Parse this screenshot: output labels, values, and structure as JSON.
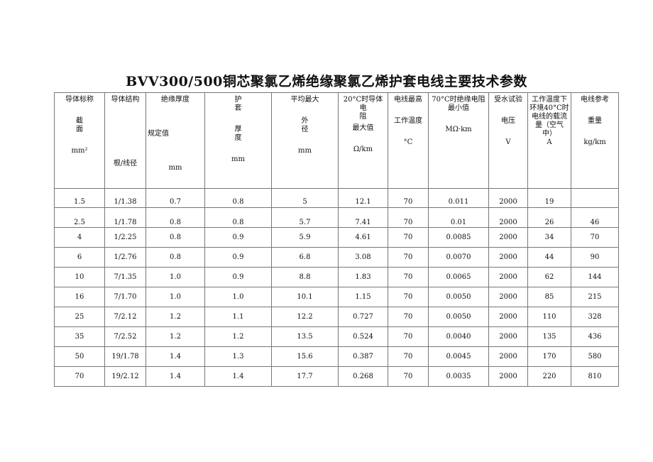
{
  "title": "BVV300/500铜芯聚氯乙烯绝缘聚氯乙烯护套电线主要技术参数",
  "headers": [
    {
      "l1": "导体标称",
      "l2a": "截",
      "l2b": "面",
      "unit": "mm²"
    },
    {
      "l1": "导体结构",
      "unit": "根/线径"
    },
    {
      "l1": "绝缘厚度",
      "l2": "规定值",
      "unit": "mm"
    },
    {
      "l1a": "护",
      "l1b": "套",
      "l2a": "厚",
      "l2b": "度",
      "unit": "mm"
    },
    {
      "l1": "平均最大",
      "l2a": "外",
      "l2b": "径",
      "unit": "mm"
    },
    {
      "l1": "20°C时导体",
      "l2a": "电",
      "l2b": "阻",
      "l3": "最大值",
      "unit": "Ω/km"
    },
    {
      "l1": "电线最高",
      "l2": "工作温度",
      "unit": "°C"
    },
    {
      "l1": "70°C时绝缘电阻",
      "l2": "最小值",
      "unit": "MΩ·km"
    },
    {
      "l1": "受水试验",
      "l2": "电压",
      "unit": "V"
    },
    {
      "l1": "工作温度下",
      "l2": "环境40°C时",
      "l3": "电线的载流",
      "l4": "量（空气",
      "l5": "中）",
      "unit": "A"
    },
    {
      "l1": "电线参考",
      "l2": "重量",
      "unit": "kg/km"
    }
  ],
  "rows": [
    [
      "1.5",
      "1/1.38",
      "0.7",
      "0.8",
      "5",
      "12.1",
      "70",
      "0.011",
      "2000",
      "19",
      ""
    ],
    [
      "2.5",
      "1/1.78",
      "0.8",
      "0.8",
      "5.7",
      "7.41",
      "70",
      "0.01",
      "2000",
      "26",
      "46"
    ],
    [
      "4",
      "1/2.25",
      "0.8",
      "0.9",
      "5.9",
      "4.61",
      "70",
      "0.0085",
      "2000",
      "34",
      "70"
    ],
    [
      "6",
      "1/2.76",
      "0.8",
      "0.9",
      "6.8",
      "3.08",
      "70",
      "0.0070",
      "2000",
      "44",
      "90"
    ],
    [
      "10",
      "7/1.35",
      "1.0",
      "0.9",
      "8.8",
      "1.83",
      "70",
      "0.0065",
      "2000",
      "62",
      "144"
    ],
    [
      "16",
      "7/1.70",
      "1.0",
      "1.0",
      "10.1",
      "1.15",
      "70",
      "0.0050",
      "2000",
      "85",
      "215"
    ],
    [
      "25",
      "7/2.12",
      "1.2",
      "1.1",
      "12.2",
      "0.727",
      "70",
      "0.0050",
      "2000",
      "110",
      "328"
    ],
    [
      "35",
      "7/2.52",
      "1.2",
      "1.2",
      "13.5",
      "0.524",
      "70",
      "0.0040",
      "2000",
      "135",
      "436"
    ],
    [
      "50",
      "19/1.78",
      "1.4",
      "1.3",
      "15.6",
      "0.387",
      "70",
      "0.0045",
      "2000",
      "170",
      "580"
    ],
    [
      "70",
      "19/2.12",
      "1.4",
      "1.4",
      "17.7",
      "0.268",
      "70",
      "0.0035",
      "2000",
      "220",
      "810"
    ]
  ]
}
